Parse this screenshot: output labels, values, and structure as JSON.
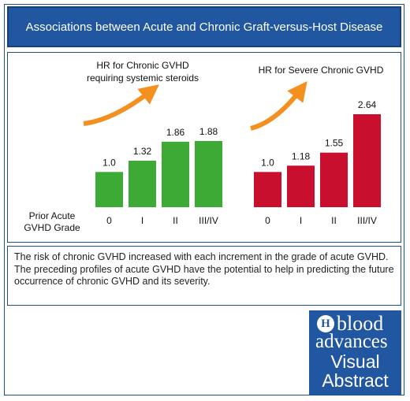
{
  "header": {
    "title": "Associations between Acute and Chronic Graft-versus-Host Disease"
  },
  "colors": {
    "brand": "#2157a0",
    "green": "#3daa35",
    "red": "#c8102e",
    "arrow": "#f39020"
  },
  "chart_data": [
    {
      "type": "bar",
      "title": "HR for Chronic GVHD requiring systemic steroids",
      "title_lines": [
        "HR for Chronic GVHD",
        "requiring systemic steroids"
      ],
      "xlabel": "Prior Acute GVHD Grade",
      "xlabel_lines": [
        "Prior Acute",
        "GVHD Grade"
      ],
      "categories": [
        "0",
        "I",
        "II",
        "III/IV"
      ],
      "values": [
        1.0,
        1.32,
        1.86,
        1.88
      ],
      "value_labels": [
        "1.0",
        "1.32",
        "1.86",
        "1.88"
      ],
      "color": "#3daa35",
      "ylim": [
        0,
        2.64
      ]
    },
    {
      "type": "bar",
      "title": "HR for Severe Chronic GVHD",
      "title_lines": [
        "HR for Severe Chronic GVHD"
      ],
      "categories": [
        "0",
        "I",
        "II",
        "III/IV"
      ],
      "values": [
        1.0,
        1.18,
        1.55,
        2.64
      ],
      "value_labels": [
        "1.0",
        "1.18",
        "1.55",
        "2.64"
      ],
      "color": "#c8102e",
      "ylim": [
        0,
        2.64
      ]
    }
  ],
  "summary": "The risk of chronic GVHD increased with each increment in the grade of acute GVHD. The preceding profiles of acute GVHD have the potential to help in predicting the future occurrence of chronic GVHD and its severity.",
  "logo": {
    "seal": "H",
    "line1": "blood",
    "line2": "advances",
    "line3": "Visual",
    "line4": "Abstract"
  }
}
